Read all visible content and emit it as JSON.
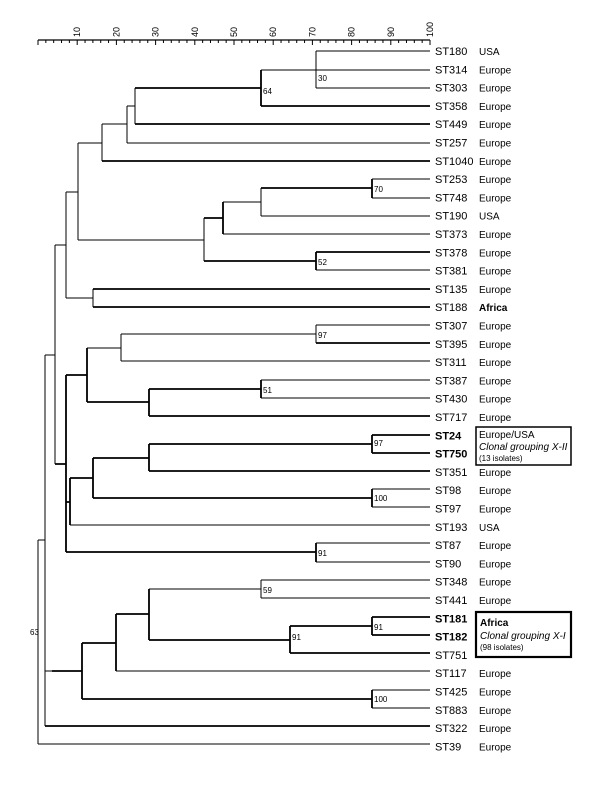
{
  "axis": {
    "ticks": [
      "10",
      "20",
      "30",
      "40",
      "50",
      "60",
      "70",
      "80",
      "90",
      "100"
    ]
  },
  "leaves": [
    {
      "st": "ST180",
      "region": "USA",
      "bold": false
    },
    {
      "st": "ST314",
      "region": "Europe",
      "bold": false
    },
    {
      "st": "ST303",
      "region": "Europe",
      "bold": false
    },
    {
      "st": "ST358",
      "region": "Europe",
      "bold": false
    },
    {
      "st": "ST449",
      "region": "Europe",
      "bold": false
    },
    {
      "st": "ST257",
      "region": "Europe",
      "bold": false
    },
    {
      "st": "ST1040",
      "region": "Europe",
      "bold": false
    },
    {
      "st": "ST253",
      "region": "Europe",
      "bold": false
    },
    {
      "st": "ST748",
      "region": "Europe",
      "bold": false
    },
    {
      "st": "ST190",
      "region": "USA",
      "bold": false
    },
    {
      "st": "ST373",
      "region": "Europe",
      "bold": false
    },
    {
      "st": "ST378",
      "region": "Europe",
      "bold": false
    },
    {
      "st": "ST381",
      "region": "Europe",
      "bold": false
    },
    {
      "st": "ST135",
      "region": "Europe",
      "bold": false
    },
    {
      "st": "ST188",
      "region": "Africa",
      "bold": false
    },
    {
      "st": "ST307",
      "region": "Europe",
      "bold": false
    },
    {
      "st": "ST395",
      "region": "Europe",
      "bold": false
    },
    {
      "st": "ST311",
      "region": "Europe",
      "bold": false
    },
    {
      "st": "ST387",
      "region": "Europe",
      "bold": false
    },
    {
      "st": "ST430",
      "region": "Europe",
      "bold": false
    },
    {
      "st": "ST717",
      "region": "Europe",
      "bold": false
    },
    {
      "st": "ST24",
      "region": "",
      "bold": true
    },
    {
      "st": "ST750",
      "region": "",
      "bold": true
    },
    {
      "st": "ST351",
      "region": "Europe",
      "bold": false
    },
    {
      "st": "ST98",
      "region": "Europe",
      "bold": false
    },
    {
      "st": "ST97",
      "region": "Europe",
      "bold": false
    },
    {
      "st": "ST193",
      "region": "USA",
      "bold": false
    },
    {
      "st": "ST87",
      "region": "Europe",
      "bold": false
    },
    {
      "st": "ST90",
      "region": "Europe",
      "bold": false
    },
    {
      "st": "ST348",
      "region": "Europe",
      "bold": false
    },
    {
      "st": "ST441",
      "region": "Europe",
      "bold": false
    },
    {
      "st": "ST181",
      "region": "",
      "bold": true
    },
    {
      "st": "ST182",
      "region": "",
      "bold": true
    },
    {
      "st": "ST751",
      "region": "",
      "bold": false
    },
    {
      "st": "ST117",
      "region": "Europe",
      "bold": false
    },
    {
      "st": "ST425",
      "region": "Europe",
      "bold": false
    },
    {
      "st": "ST883",
      "region": "Europe",
      "bold": false
    },
    {
      "st": "ST322",
      "region": "Europe",
      "bold": false
    },
    {
      "st": "ST39",
      "region": "Europe",
      "bold": false
    }
  ],
  "bootstrap": {
    "n1": "30",
    "n2": "64",
    "n3": "70",
    "n4": "52",
    "n5": "97",
    "n6": "51",
    "n7": "97",
    "n8": "100",
    "n9": "91",
    "n10": "59",
    "n11": "91",
    "n12": "91",
    "n13": "100",
    "n14": "63"
  },
  "boxes": {
    "x2": {
      "line1": "Europe/USA",
      "line2": "Clonal grouping X-II",
      "line3": "(13 isolates)"
    },
    "x1": {
      "line1": "Africa",
      "line2": "Clonal grouping X-I",
      "line3": "(98 isolates)"
    }
  },
  "colors": {
    "line": "#000000",
    "background": "#ffffff"
  }
}
